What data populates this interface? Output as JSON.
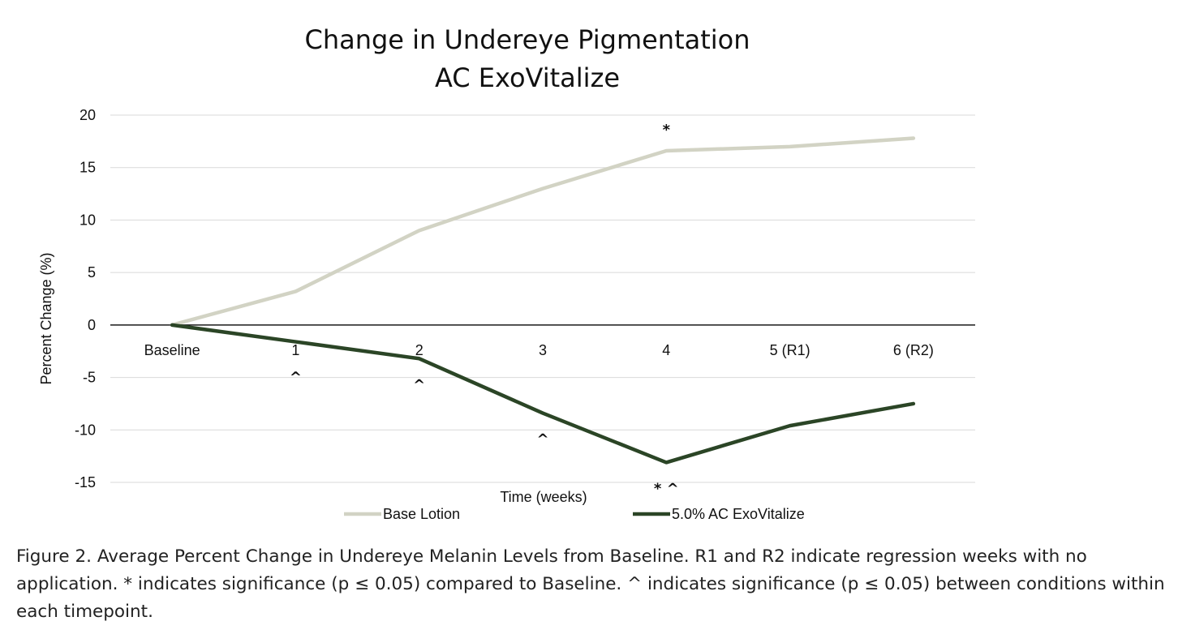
{
  "chart_data": {
    "type": "line",
    "title": [
      "Change in Undereye Pigmentation",
      "AC ExoVitalize"
    ],
    "xlabel": "Time (weeks)",
    "ylabel": "Percent Change (%)",
    "categories": [
      "Baseline",
      "1",
      "2",
      "3",
      "4",
      "5 (R1)",
      "6  (R2)"
    ],
    "ylim": [
      -15,
      20
    ],
    "yticks": [
      20,
      15,
      10,
      5,
      0,
      -5,
      -10,
      -15
    ],
    "grid": true,
    "legend_position": "bottom",
    "series": [
      {
        "name": "Base Lotion",
        "color": "#d2d3c4",
        "values": [
          0,
          3.2,
          9.0,
          13.0,
          16.6,
          17.0,
          17.8
        ]
      },
      {
        "name": "5.0% AC ExoVitalize",
        "color": "#2b4526",
        "values": [
          0,
          -1.6,
          -3.2,
          -8.4,
          -13.1,
          -9.6,
          -7.5
        ]
      }
    ],
    "annotations": [
      {
        "category": "4",
        "text": "*",
        "position": "above"
      },
      {
        "category": "1",
        "text": "^",
        "position": "below"
      },
      {
        "category": "2",
        "text": "^",
        "position": "below"
      },
      {
        "category": "3",
        "text": "^",
        "position": "below"
      },
      {
        "category": "4",
        "text": "* ^",
        "position": "below"
      }
    ]
  },
  "caption": {
    "label": "Figure 2.",
    "text": " Average Percent Change in Undereye Melanin Levels from Baseline. R1 and R2 indicate regression weeks with no application. * indicates significance (p ≤ 0.05) compared to Baseline. ^ indicates significance (p ≤ 0.05) between conditions within each timepoint."
  }
}
